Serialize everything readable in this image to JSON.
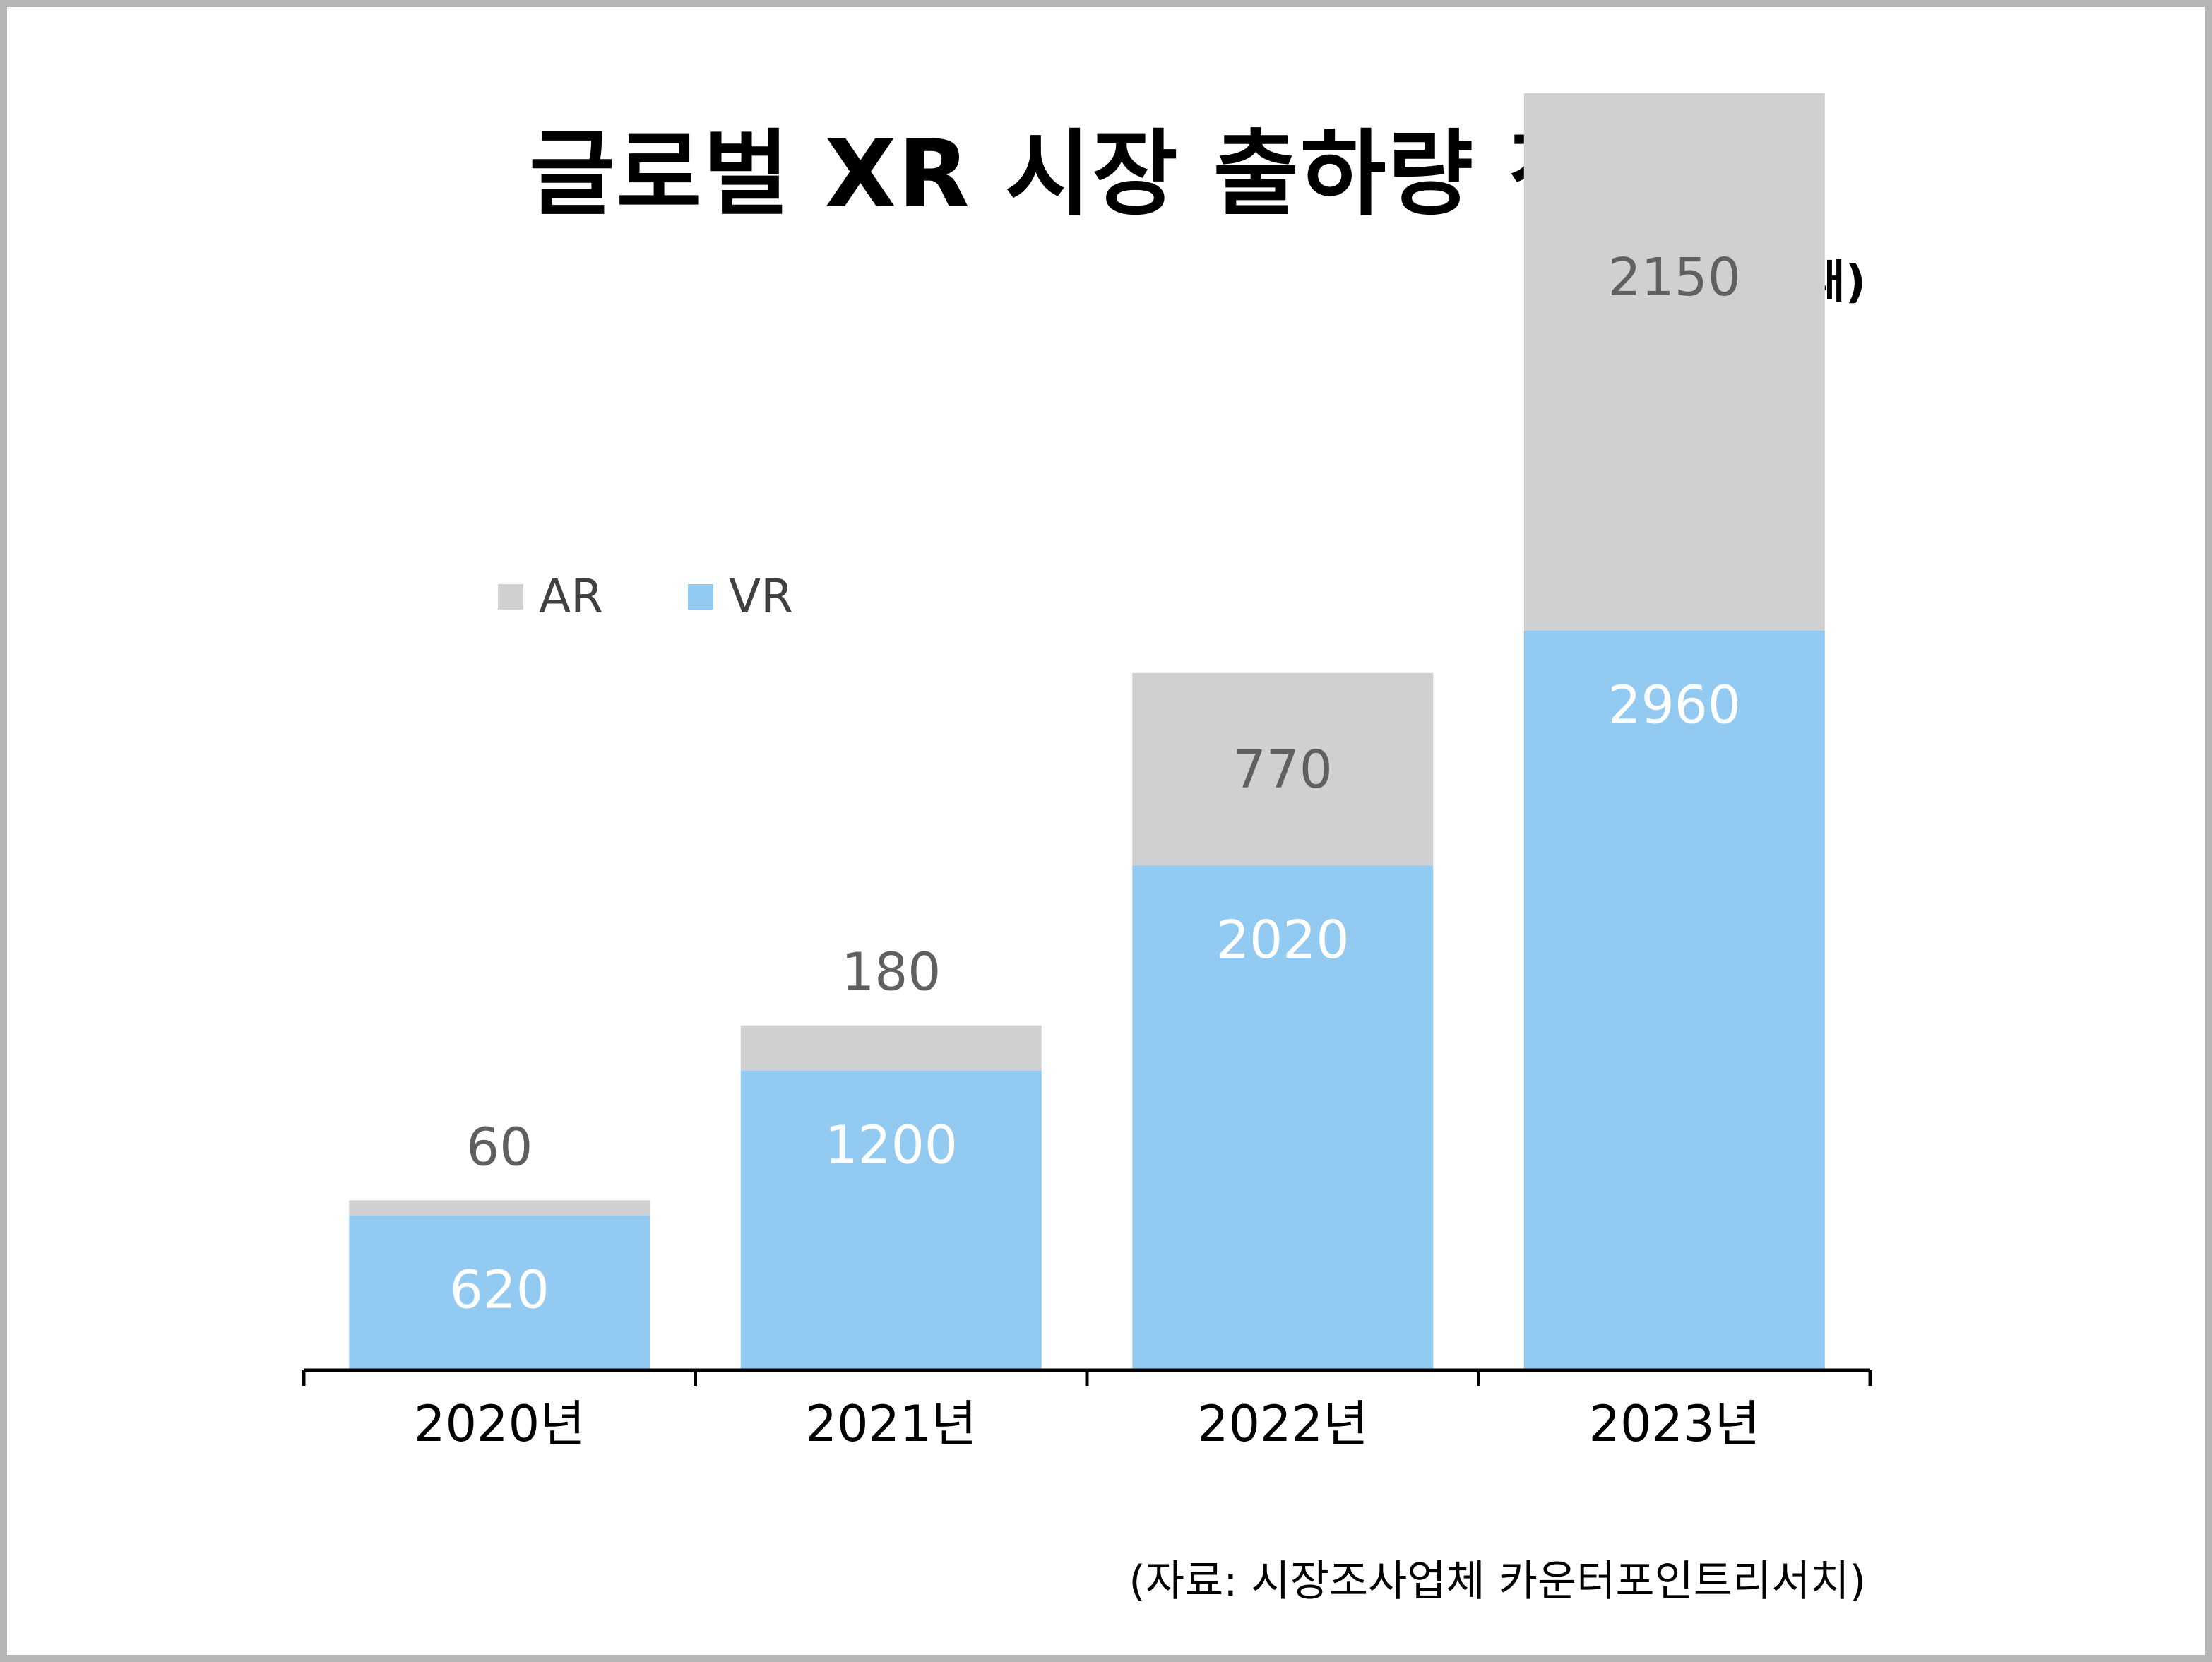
{
  "title": "글로벌 XR 시장 출하량 전망",
  "unit_note": "(단위: 만대)",
  "source_note": "(자료: 시장조사업체 카운터포인트리서치)",
  "colors": {
    "VR": "#92caf2",
    "AR": "#d0cfd1",
    "axis": "#000000",
    "label_on_vr": "#ffffff",
    "label_on_ar": "#606060"
  },
  "chart_data": {
    "type": "bar",
    "stacked": true,
    "categories": [
      "2020년",
      "2021년",
      "2022년",
      "2023년"
    ],
    "series": [
      {
        "name": "VR",
        "values": [
          620,
          1200,
          2020,
          2960
        ]
      },
      {
        "name": "AR",
        "values": [
          60,
          180,
          770,
          2150
        ]
      }
    ],
    "ylim": [
      0,
      5200
    ],
    "grid": false,
    "legend": "top-left"
  }
}
